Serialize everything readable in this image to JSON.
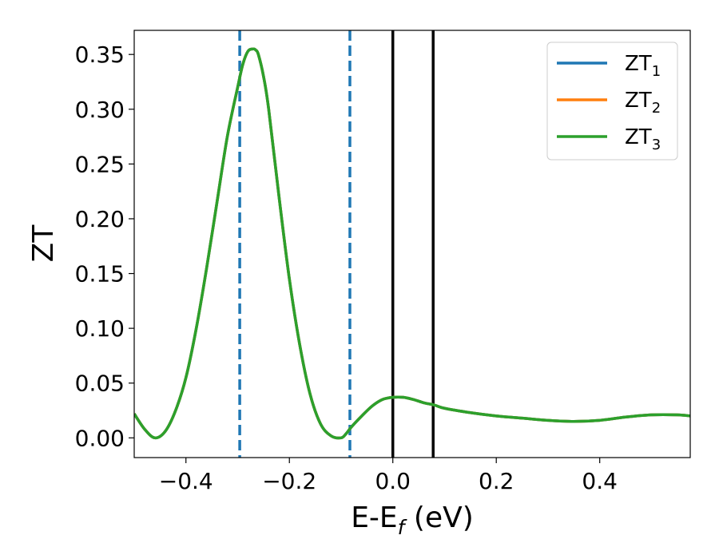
{
  "chart_data": {
    "type": "line",
    "title": "",
    "xlabel": "E-E",
    "xlabel_sub": "f",
    "xlabel_unit": " (eV)",
    "ylabel": "ZT",
    "xlim": [
      -0.5,
      0.575
    ],
    "ylim": [
      -0.018,
      0.372
    ],
    "xticks": [
      -0.4,
      -0.2,
      0.0,
      0.2,
      0.4
    ],
    "xtick_labels": [
      "−0.4",
      "−0.2",
      "0.0",
      "0.2",
      "0.4"
    ],
    "yticks": [
      0.0,
      0.05,
      0.1,
      0.15,
      0.2,
      0.25,
      0.3,
      0.35
    ],
    "ytick_labels": [
      "0.00",
      "0.05",
      "0.10",
      "0.15",
      "0.20",
      "0.25",
      "0.30",
      "0.35"
    ],
    "grid": false,
    "legend_position": "top-right",
    "vlines": [
      {
        "x": -0.296,
        "style": "dashed",
        "color": "#1f77b4"
      },
      {
        "x": -0.083,
        "style": "dashed",
        "color": "#1f77b4"
      },
      {
        "x": 0.0,
        "style": "solid",
        "color": "#000000"
      },
      {
        "x": 0.078,
        "style": "solid",
        "color": "#000000"
      }
    ],
    "x": [
      -0.5,
      -0.48,
      -0.46,
      -0.44,
      -0.42,
      -0.4,
      -0.38,
      -0.36,
      -0.34,
      -0.32,
      -0.3,
      -0.29,
      -0.28,
      -0.27,
      -0.265,
      -0.26,
      -0.25,
      -0.24,
      -0.22,
      -0.2,
      -0.18,
      -0.16,
      -0.14,
      -0.12,
      -0.1,
      -0.09,
      -0.08,
      -0.06,
      -0.04,
      -0.02,
      0.0,
      0.02,
      0.04,
      0.06,
      0.08,
      0.1,
      0.15,
      0.2,
      0.25,
      0.3,
      0.35,
      0.4,
      0.45,
      0.5,
      0.55,
      0.575
    ],
    "series": [
      {
        "name": "ZT",
        "name_sub": "1",
        "color": "#1f77b4",
        "values": [
          0.022,
          0.008,
          0.0,
          0.006,
          0.025,
          0.055,
          0.1,
          0.155,
          0.215,
          0.275,
          0.32,
          0.341,
          0.353,
          0.355,
          0.354,
          0.35,
          0.33,
          0.3,
          0.22,
          0.145,
          0.085,
          0.04,
          0.013,
          0.002,
          0.0,
          0.004,
          0.01,
          0.02,
          0.029,
          0.035,
          0.037,
          0.037,
          0.035,
          0.032,
          0.03,
          0.027,
          0.023,
          0.02,
          0.018,
          0.016,
          0.015,
          0.016,
          0.019,
          0.021,
          0.021,
          0.02
        ]
      },
      {
        "name": "ZT",
        "name_sub": "2",
        "color": "#ff7f0e",
        "values": [
          0.022,
          0.008,
          0.0,
          0.006,
          0.025,
          0.055,
          0.1,
          0.155,
          0.215,
          0.275,
          0.32,
          0.341,
          0.353,
          0.355,
          0.354,
          0.35,
          0.33,
          0.3,
          0.22,
          0.145,
          0.085,
          0.04,
          0.013,
          0.002,
          0.0,
          0.004,
          0.01,
          0.02,
          0.029,
          0.035,
          0.037,
          0.037,
          0.035,
          0.032,
          0.03,
          0.027,
          0.023,
          0.02,
          0.018,
          0.016,
          0.015,
          0.016,
          0.019,
          0.021,
          0.021,
          0.02
        ]
      },
      {
        "name": "ZT",
        "name_sub": "3",
        "color": "#2ca02c",
        "values": [
          0.022,
          0.008,
          0.0,
          0.006,
          0.025,
          0.055,
          0.1,
          0.155,
          0.215,
          0.275,
          0.32,
          0.341,
          0.353,
          0.355,
          0.354,
          0.35,
          0.33,
          0.3,
          0.22,
          0.145,
          0.085,
          0.04,
          0.013,
          0.002,
          0.0,
          0.004,
          0.01,
          0.02,
          0.029,
          0.035,
          0.037,
          0.037,
          0.035,
          0.032,
          0.03,
          0.027,
          0.023,
          0.02,
          0.018,
          0.016,
          0.015,
          0.016,
          0.019,
          0.021,
          0.021,
          0.02
        ]
      }
    ]
  }
}
